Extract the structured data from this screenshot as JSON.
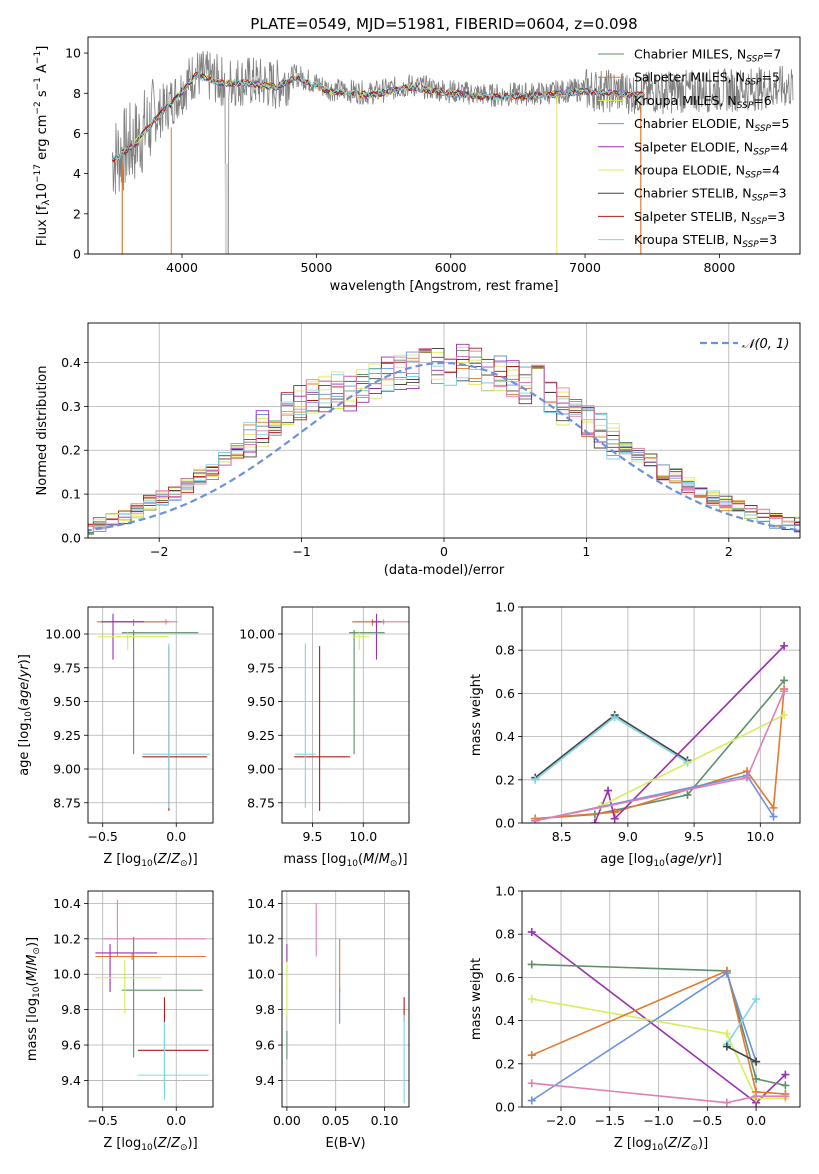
{
  "figure": {
    "title": "PLATE=0549, MJD=51981, FIBERID=0604, z=0.098"
  },
  "colors": {
    "chabrier_miles": "#5f8f6b",
    "salpeter_miles": "#e07a2f",
    "kroupa_miles": "#d4ef5a",
    "chabrier_elodie": "#6a92dd",
    "salpeter_elodie": "#9a2fb0",
    "kroupa_elodie": "#e8e36a",
    "chabrier_stelib": "#444444",
    "salpeter_stelib": "#b31b1b",
    "kroupa_stelib": "#7fd6e6",
    "pink": "#e07fb5",
    "gray_data": "#808080",
    "normal_curve": "#6a92dd"
  },
  "chart_data": [
    {
      "type": "line",
      "title": "PLATE=0549, MJD=51981, FIBERID=0604, z=0.098",
      "xlabel": "wavelength [Angstrom, rest frame]",
      "ylabel": "Flux [f_λ 10^-17 erg cm^-2 s^-1 A^-1]",
      "xlim": [
        3300,
        8600
      ],
      "ylim": [
        0,
        10.8
      ],
      "xticks": [
        "4000",
        "5000",
        "6000",
        "7000",
        "8000"
      ],
      "yticks": [
        "0",
        "2",
        "4",
        "6",
        "8",
        "10"
      ],
      "grid": false,
      "legend_position": "upper right",
      "legend": [
        "Chabrier MILES, N_SSP=7",
        "Salpeter MILES, N_SSP=5",
        "Kroupa MILES, N_SSP=6",
        "Chabrier ELODIE, N_SSP=5",
        "Salpeter ELODIE, N_SSP=4",
        "Kroupa ELODIE, N_SSP=4",
        "Chabrier STELIB, N_SSP=3",
        "Salpeter STELIB, N_SSP=3",
        "Kroupa STELIB, N_SSP=3"
      ],
      "continuum_x": [
        3500,
        3650,
        3800,
        3950,
        4100,
        4300,
        4500,
        4700,
        4850,
        5100,
        5400,
        5700,
        6000,
        6300,
        6700,
        7000,
        7400,
        7800,
        8200,
        8500
      ],
      "continuum_y": [
        4.8,
        5.6,
        6.8,
        7.8,
        9.0,
        8.6,
        8.6,
        8.4,
        8.9,
        8.2,
        8.0,
        8.4,
        8.1,
        7.9,
        8.0,
        8.2,
        8.0,
        8.1,
        8.2,
        8.3
      ]
    },
    {
      "type": "line",
      "xlabel": "(data-model)/error",
      "ylabel": "Normed distribution",
      "xlim": [
        -2.5,
        2.5
      ],
      "ylim": [
        0,
        0.49
      ],
      "xticks": [
        "−2",
        "−1",
        "0",
        "1",
        "2"
      ],
      "yticks": [
        "0.0",
        "0.1",
        "0.2",
        "0.3",
        "0.4"
      ],
      "grid": true,
      "legend_position": "upper right",
      "legend": [
        "N(0,1)"
      ],
      "series": [
        {
          "values": [
            0.02,
            0.03,
            0.04,
            0.05,
            0.06,
            0.08,
            0.09,
            0.1,
            0.12,
            0.14,
            0.15,
            0.18,
            0.2,
            0.22,
            0.25,
            0.27,
            0.3,
            0.31,
            0.32,
            0.33,
            0.34,
            0.33,
            0.35,
            0.36,
            0.37,
            0.38,
            0.38,
            0.4,
            0.39,
            0.39,
            0.4,
            0.39,
            0.38,
            0.37,
            0.36,
            0.35,
            0.35,
            0.33,
            0.3,
            0.29,
            0.27,
            0.25,
            0.22,
            0.2,
            0.19,
            0.18,
            0.15,
            0.14,
            0.12,
            0.1,
            0.09,
            0.08,
            0.07,
            0.06,
            0.05,
            0.04,
            0.03,
            0.03
          ]
        }
      ]
    },
    {
      "type": "scatter",
      "xlabel": "Z [log10(Z/Z⊙)]",
      "ylabel": "age  [log10(age/yr)]",
      "xlim": [
        -0.6,
        0.25
      ],
      "ylim": [
        8.6,
        10.2
      ],
      "xticks": [
        "−0.5",
        "0.0"
      ],
      "yticks": [
        "8.75",
        "9.00",
        "9.25",
        "9.50",
        "9.75",
        "10.00"
      ],
      "grid": true,
      "errorbars": [
        {
          "x": -0.07,
          "y": 10.09,
          "xerr": [
            0.36,
            0.08
          ],
          "yerr": [
            0.02,
            0.02
          ],
          "color": "pink"
        },
        {
          "x": -0.29,
          "y": 10.09,
          "xerr": [
            0.25,
            0.24
          ],
          "yerr": [
            0.03,
            0.02
          ],
          "color": "salpeter_miles"
        },
        {
          "x": -0.43,
          "y": 10.09,
          "xerr": [
            0.08,
            0.21
          ],
          "yerr": [
            0.28,
            0.06
          ],
          "color": "salpeter_elodie"
        },
        {
          "x": -0.29,
          "y": 10.01,
          "xerr": [
            0.08,
            0.44
          ],
          "yerr": [
            0.9,
            0.02
          ],
          "color": "chabrier_miles"
        },
        {
          "x": -0.33,
          "y": 9.98,
          "xerr": [
            0.2,
            0.28
          ],
          "yerr": [
            0.1,
            0.03
          ],
          "color": "kroupa_miles"
        },
        {
          "x": -0.05,
          "y": 9.09,
          "xerr": [
            0.18,
            0.26
          ],
          "yerr": [
            0.4,
            0.82
          ],
          "color": "salpeter_stelib"
        },
        {
          "x": -0.05,
          "y": 9.11,
          "xerr": [
            0.18,
            0.28
          ],
          "yerr": [
            0.4,
            0.82
          ],
          "color": "kroupa_stelib"
        }
      ]
    },
    {
      "type": "scatter",
      "xlabel": "mass [log10(M/M⊙)]",
      "ylabel": "",
      "xlim": [
        9.2,
        10.45
      ],
      "ylim": [
        8.6,
        10.2
      ],
      "xticks": [
        "9.5",
        "10.0"
      ],
      "yticks": [
        "8.75",
        "9.00",
        "9.25",
        "9.50",
        "9.75",
        "10.00"
      ],
      "grid": true,
      "errorbars": [
        {
          "x": 10.2,
          "y": 10.09,
          "xerr": [
            0.3,
            0.3
          ],
          "yerr": [
            0.02,
            0.02
          ],
          "color": "pink"
        },
        {
          "x": 10.09,
          "y": 10.09,
          "xerr": [
            0.2,
            0.12
          ],
          "yerr": [
            0.03,
            0.02
          ],
          "color": "salpeter_miles"
        },
        {
          "x": 10.13,
          "y": 10.09,
          "xerr": [
            0.05,
            0.05
          ],
          "yerr": [
            0.28,
            0.06
          ],
          "color": "salpeter_elodie"
        },
        {
          "x": 9.91,
          "y": 10.01,
          "xerr": [
            0.05,
            0.3
          ],
          "yerr": [
            0.9,
            0.02
          ],
          "color": "chabrier_miles"
        },
        {
          "x": 9.96,
          "y": 9.98,
          "xerr": [
            0.05,
            0.1
          ],
          "yerr": [
            0.1,
            0.03
          ],
          "color": "kroupa_miles"
        },
        {
          "x": 9.57,
          "y": 9.09,
          "xerr": [
            0.25,
            0.3
          ],
          "yerr": [
            0.4,
            0.82
          ],
          "color": "salpeter_stelib"
        },
        {
          "x": 9.43,
          "y": 9.11,
          "xerr": [
            0.1,
            0.1
          ],
          "yerr": [
            0.4,
            0.82
          ],
          "color": "kroupa_stelib"
        }
      ]
    },
    {
      "type": "line",
      "xlabel": "age  [log10(age/yr)]",
      "ylabel": "mass weight",
      "xlim": [
        8.2,
        10.3
      ],
      "ylim": [
        0,
        1.0
      ],
      "xticks": [
        "8.5",
        "9.0",
        "9.5",
        "10.0"
      ],
      "yticks": [
        "0.0",
        "0.2",
        "0.4",
        "0.6",
        "0.8",
        "1.0"
      ],
      "grid": true,
      "x": [
        8.3,
        8.9,
        9.45,
        10.1,
        10.18
      ],
      "series": [
        {
          "x": [
            8.3,
            8.9,
            9.45
          ],
          "values": [
            0.21,
            0.5,
            0.29
          ],
          "color": "chabrier_stelib"
        },
        {
          "x": [
            8.3,
            8.9,
            9.45
          ],
          "values": [
            0.2,
            0.49,
            0.28
          ],
          "color": "kroupa_stelib"
        },
        {
          "x": [
            8.3,
            8.75,
            9.45,
            10.18
          ],
          "values": [
            0.02,
            0.04,
            0.13,
            0.66
          ],
          "color": "chabrier_miles"
        },
        {
          "x": [
            8.3,
            8.9,
            9.9,
            10.1,
            10.18
          ],
          "values": [
            0.02,
            0.05,
            0.24,
            0.07,
            0.62
          ],
          "color": "salpeter_miles"
        },
        {
          "x": [
            8.75,
            8.85,
            8.9,
            10.18
          ],
          "values": [
            0.0,
            0.15,
            0.02,
            0.82
          ],
          "color": "salpeter_elodie"
        },
        {
          "x": [
            8.8,
            10.18
          ],
          "values": [
            0.08,
            0.5
          ],
          "color": "kroupa_miles"
        },
        {
          "x": [
            8.3,
            9.9,
            10.1
          ],
          "values": [
            0.01,
            0.22,
            0.03
          ],
          "color": "chabrier_elodie"
        },
        {
          "x": [
            8.3,
            9.9,
            10.18
          ],
          "values": [
            0.01,
            0.21,
            0.61
          ],
          "color": "pink"
        }
      ]
    },
    {
      "type": "scatter",
      "xlabel": "Z [log10(Z/Z⊙)]",
      "ylabel": "mass [log10(M/M⊙)]",
      "xlim": [
        -0.6,
        0.25
      ],
      "ylim": [
        9.25,
        10.47
      ],
      "xticks": [
        "−0.5",
        "0.0"
      ],
      "yticks": [
        "9.4",
        "9.6",
        "9.8",
        "10.0",
        "10.2",
        "10.4"
      ],
      "grid": true,
      "errorbars": [
        {
          "x": -0.4,
          "y": 10.2,
          "xerr": [
            0.1,
            0.6
          ],
          "yerr": [
            0.1,
            0.22
          ],
          "color": "pink"
        },
        {
          "x": -0.3,
          "y": 10.1,
          "xerr": [
            0.25,
            0.5
          ],
          "yerr": [
            0.02,
            0.02
          ],
          "color": "salpeter_miles"
        },
        {
          "x": -0.45,
          "y": 10.12,
          "xerr": [
            0.1,
            0.32
          ],
          "yerr": [
            0.22,
            0.05
          ],
          "color": "salpeter_elodie"
        },
        {
          "x": -0.29,
          "y": 9.91,
          "xerr": [
            0.08,
            0.47
          ],
          "yerr": [
            0.38,
            0.3
          ],
          "color": "chabrier_miles"
        },
        {
          "x": -0.35,
          "y": 9.98,
          "xerr": [
            0.2,
            0.25
          ],
          "yerr": [
            0.2,
            0.1
          ],
          "color": "kroupa_miles"
        },
        {
          "x": -0.08,
          "y": 9.57,
          "xerr": [
            0.18,
            0.3
          ],
          "yerr": [
            0.2,
            0.3
          ],
          "color": "salpeter_stelib"
        },
        {
          "x": -0.08,
          "y": 9.43,
          "xerr": [
            0.18,
            0.3
          ],
          "yerr": [
            0.14,
            0.3
          ],
          "color": "kroupa_stelib"
        }
      ]
    },
    {
      "type": "scatter",
      "xlabel": "E(B-V)",
      "ylabel": "",
      "xlim": [
        -0.005,
        0.125
      ],
      "ylim": [
        9.25,
        10.47
      ],
      "xticks": [
        "0.00",
        "0.05",
        "0.10"
      ],
      "yticks": [
        "9.4",
        "9.6",
        "9.8",
        "10.0",
        "10.2",
        "10.4"
      ],
      "grid": true,
      "errorbars": [
        {
          "x": 0.0,
          "y": 10.12,
          "xerr": [
            0,
            0
          ],
          "yerr": [
            0.05,
            0.05
          ],
          "color": "salpeter_elodie"
        },
        {
          "x": 0.0,
          "y": 9.92,
          "xerr": [
            0,
            0
          ],
          "yerr": [
            0.15,
            0.15
          ],
          "color": "kroupa_miles"
        },
        {
          "x": 0.0,
          "y": 9.6,
          "xerr": [
            0,
            0
          ],
          "yerr": [
            0.08,
            0.08
          ],
          "color": "chabrier_miles"
        },
        {
          "x": 0.03,
          "y": 10.25,
          "xerr": [
            0,
            0
          ],
          "yerr": [
            0.15,
            0.15
          ],
          "color": "pink"
        },
        {
          "x": 0.054,
          "y": 10.05,
          "xerr": [
            0,
            0
          ],
          "yerr": [
            0.15,
            0.15
          ],
          "color": "salpeter_miles"
        },
        {
          "x": 0.054,
          "y": 9.82,
          "xerr": [
            0,
            0
          ],
          "yerr": [
            0.1,
            0.1
          ],
          "color": "chabrier_elodie"
        },
        {
          "x": 0.12,
          "y": 9.8,
          "xerr": [
            0,
            0
          ],
          "yerr": [
            0.07,
            0.07
          ],
          "color": "salpeter_stelib"
        },
        {
          "x": 0.12,
          "y": 9.52,
          "xerr": [
            0,
            0
          ],
          "yerr": [
            0.25,
            0.25
          ],
          "color": "kroupa_stelib"
        }
      ]
    },
    {
      "type": "line",
      "xlabel": "Z [log10(Z/Z⊙)]",
      "ylabel": "mass weight",
      "xlim": [
        -2.4,
        0.45
      ],
      "ylim": [
        0,
        1.0
      ],
      "xticks": [
        "−2.0",
        "−1.5",
        "−1.0",
        "−0.5",
        "0.0"
      ],
      "yticks": [
        "0.0",
        "0.2",
        "0.4",
        "0.6",
        "0.8",
        "1.0"
      ],
      "grid": true,
      "series": [
        {
          "x": [
            -2.3,
            0.0,
            0.3
          ],
          "values": [
            0.81,
            0.02,
            0.15
          ],
          "color": "salpeter_elodie"
        },
        {
          "x": [
            -2.3,
            -0.3,
            0.0,
            0.3
          ],
          "values": [
            0.66,
            0.63,
            0.13,
            0.1
          ],
          "color": "chabrier_miles"
        },
        {
          "x": [
            -2.3,
            -0.3,
            0.0,
            0.3
          ],
          "values": [
            0.5,
            0.34,
            0.04,
            0.04
          ],
          "color": "kroupa_miles"
        },
        {
          "x": [
            -2.3,
            -0.3,
            0.0,
            0.3
          ],
          "values": [
            0.24,
            0.63,
            0.07,
            0.06
          ],
          "color": "salpeter_miles"
        },
        {
          "x": [
            -2.3,
            -0.3,
            0.0
          ],
          "values": [
            0.03,
            0.62,
            0.21
          ],
          "color": "chabrier_elodie"
        },
        {
          "x": [
            -2.3,
            -0.3,
            0.0,
            0.3
          ],
          "values": [
            0.11,
            0.02,
            0.05,
            0.05
          ],
          "color": "pink"
        },
        {
          "x": [
            -0.3,
            0.0
          ],
          "values": [
            0.29,
            0.5
          ],
          "color": "kroupa_stelib"
        },
        {
          "x": [
            -0.3,
            0.0
          ],
          "values": [
            0.28,
            0.21
          ],
          "color": "chabrier_stelib"
        }
      ]
    }
  ]
}
